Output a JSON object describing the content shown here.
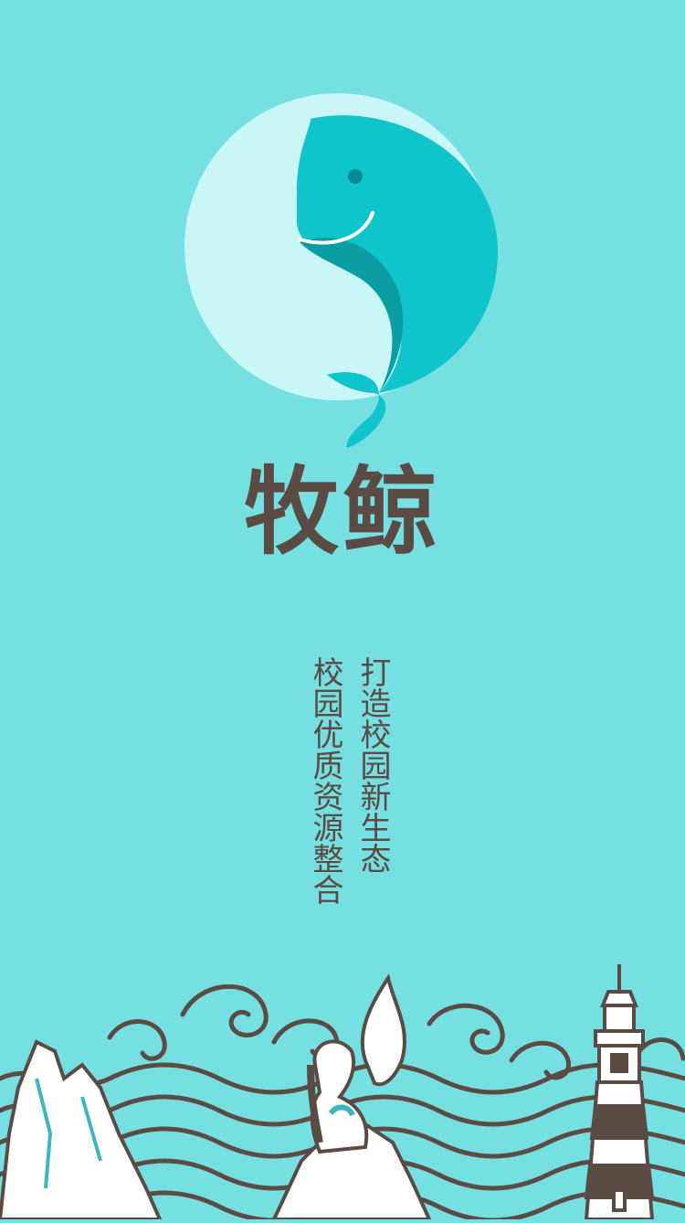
{
  "app": {
    "name": "牧鲸"
  },
  "slogans": {
    "primary": "打造校园新生态",
    "secondary": "校园优质资源整合"
  },
  "colors": {
    "background": "#76dfe2",
    "brand_text": "#5b4b45",
    "whale": "#0fc4cb",
    "whale_dark": "#0a9da3",
    "moon": "#c9f6f7",
    "line_art": "#5b4b45"
  },
  "icons": {
    "logo": "whale-logo-icon",
    "scenery": "coastal-scenery-illustration"
  }
}
